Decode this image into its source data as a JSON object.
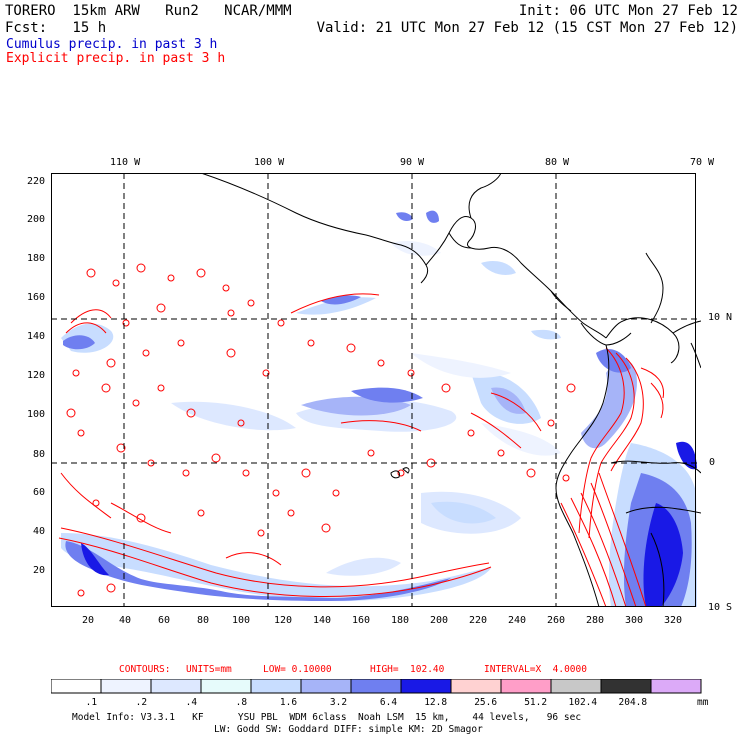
{
  "header": {
    "line1_left": "TORERO  15km ARW   Run2   NCAR/MMM",
    "line1_right": "Init: 06 UTC Mon 27 Feb 12",
    "line2_left": "Fcst:   15 h",
    "line2_right": "Valid: 21 UTC Mon 27 Feb 12 (15 CST Mon 27 Feb 12)",
    "legend_cumulus": "Cumulus precip. in past 3 h",
    "legend_explicit": "Explicit precip. in past 3 h"
  },
  "map": {
    "lon_labels": [
      "110 W",
      "100 W",
      "90 W",
      "80 W",
      "70 W"
    ],
    "lat_labels": [
      "10 N",
      "0",
      "10 S"
    ],
    "y_ticks": [
      "220",
      "200",
      "180",
      "160",
      "140",
      "120",
      "100",
      "80",
      "60",
      "40",
      "20"
    ],
    "x_ticks": [
      "20",
      "40",
      "60",
      "80",
      "100",
      "120",
      "140",
      "160",
      "180",
      "200",
      "220",
      "240",
      "260",
      "280",
      "300",
      "320"
    ]
  },
  "contour_info": {
    "contours": "CONTOURS:",
    "units": "UNITS=mm",
    "low": "LOW= 0.10000",
    "high": "HIGH=  102.40",
    "interval": "INTERVAL=X  4.0000"
  },
  "colorbar": {
    "labels": [
      ".1",
      ".2",
      ".4",
      ".8",
      "1.6",
      "3.2",
      "6.4",
      "12.8",
      "25.6",
      "51.2",
      "102.4",
      "204.8"
    ],
    "unit": "mm",
    "colors": [
      "#ffffff",
      "#eef3ff",
      "#dde8ff",
      "#e6fbfb",
      "#c8ddff",
      "#a6b4f8",
      "#6f7ff0",
      "#1919e6",
      "#ffd2d2",
      "#ff9ec8",
      "#c8c8c8",
      "#323232",
      "#dcaaf8"
    ]
  },
  "model_info": {
    "line1": "Model Info: V3.3.1   KF      YSU PBL  WDM 6class  Noah LSM  15 km,    44 levels,   96 sec",
    "line2": "LW: Godd SW: Goddard DIFF: simple KM: 2D Smagor"
  }
}
